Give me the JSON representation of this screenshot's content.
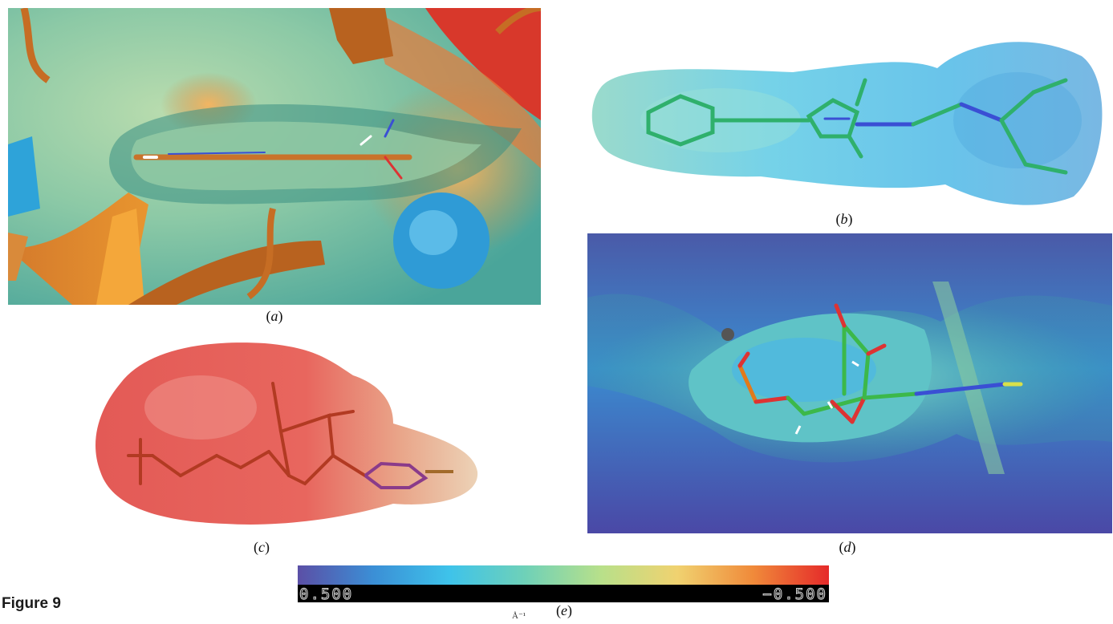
{
  "panels": {
    "a": {
      "caption_open": "(",
      "caption_letter": "a",
      "caption_close": ")"
    },
    "b": {
      "caption_open": "(",
      "caption_letter": "b",
      "caption_close": ")"
    },
    "c": {
      "caption_open": "(",
      "caption_letter": "c",
      "caption_close": ")"
    },
    "d": {
      "caption_open": "(",
      "caption_letter": "d",
      "caption_close": ")"
    },
    "e": {
      "caption_open": "(",
      "caption_letter": "e",
      "caption_close": ")"
    }
  },
  "colorbar": {
    "left_label": "0.500",
    "right_label": "−0.500",
    "unit_fragment": "Å⁻¹",
    "colors": [
      "#5b4fa6",
      "#3b8fd6",
      "#3ec3ea",
      "#6fd1b8",
      "#b8e08a",
      "#f0d270",
      "#f08a3a",
      "#e52a2a"
    ]
  },
  "figure": {
    "title": "Figure 9"
  }
}
